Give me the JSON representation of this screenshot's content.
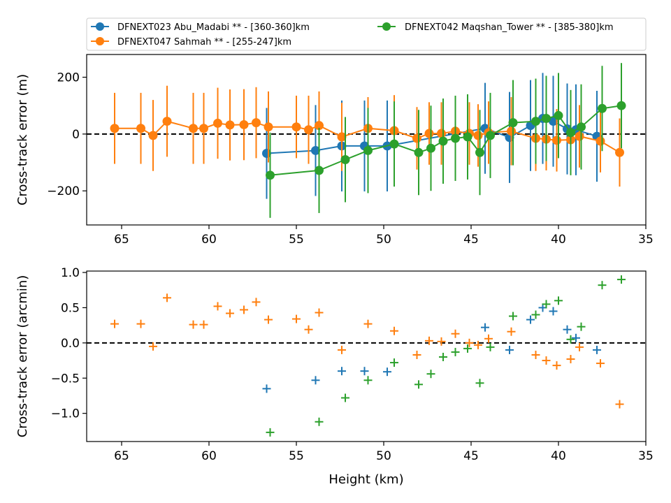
{
  "colors": {
    "s1": "#1f77b4",
    "s2": "#ff7f0e",
    "s3": "#2ca02c"
  },
  "chart_data": [
    {
      "type": "scatter",
      "panel": "top",
      "xlabel": "",
      "ylabel": "Cross-track error (m)",
      "xlim": [
        67,
        35
      ],
      "ylim": [
        -320,
        280
      ],
      "xticks": [
        65,
        60,
        55,
        50,
        45,
        40,
        35
      ],
      "yticks": [
        200,
        0,
        -200
      ],
      "hline": 0,
      "legend": {
        "placement": "top",
        "entries": [
          "DFNEXT023 Abu_Madabi **  - [360-360]km",
          "DFNEXT047 Sahmah **  - [255-247]km",
          "DFNEXT042 Maqshan_Tower **  - [385-380]km"
        ]
      },
      "series": [
        {
          "name": "DFNEXT023 Abu_Madabi **  - [360-360]km",
          "color": "#1f77b4",
          "x": [
            56.7,
            53.9,
            52.4,
            51.1,
            49.8,
            44.2,
            42.8,
            41.6,
            40.9,
            40.3,
            39.5,
            39.0,
            37.8
          ],
          "y": [
            -68,
            -58,
            -42,
            -42,
            -42,
            20,
            -12,
            30,
            55,
            45,
            18,
            15,
            -8
          ],
          "yerr": [
            160,
            160,
            160,
            160,
            160,
            160,
            160,
            160,
            160,
            160,
            160,
            160,
            160
          ]
        },
        {
          "name": "DFNEXT047 Sahmah **  - [255-247]km",
          "color": "#ff7f0e",
          "x": [
            65.4,
            63.9,
            63.2,
            62.4,
            60.9,
            60.3,
            59.5,
            58.8,
            58.0,
            57.3,
            56.6,
            55.0,
            54.3,
            53.7,
            52.4,
            50.9,
            49.4,
            48.1,
            47.4,
            46.7,
            45.9,
            45.1,
            44.6,
            44.0,
            42.7,
            41.3,
            40.7,
            40.1,
            39.3,
            38.8,
            37.6,
            36.5
          ],
          "y": [
            20,
            20,
            -5,
            45,
            20,
            20,
            38,
            32,
            33,
            40,
            25,
            25,
            15,
            30,
            -10,
            20,
            12,
            -15,
            2,
            2,
            10,
            2,
            -5,
            5,
            10,
            -15,
            -18,
            -22,
            -20,
            -8,
            -25,
            -65
          ],
          "yerr": [
            125,
            125,
            125,
            125,
            125,
            125,
            125,
            125,
            125,
            125,
            125,
            110,
            120,
            120,
            120,
            110,
            125,
            110,
            110,
            110,
            120,
            110,
            110,
            110,
            120,
            115,
            110,
            110,
            115,
            110,
            110,
            120
          ]
        },
        {
          "name": "DFNEXT042 Maqshan_Tower **  - [385-380]km",
          "color": "#2ca02c",
          "x": [
            56.5,
            53.7,
            52.2,
            50.9,
            49.4,
            48.0,
            47.3,
            46.6,
            45.9,
            45.2,
            44.5,
            43.9,
            42.6,
            41.3,
            40.7,
            40.0,
            39.3,
            38.7,
            37.5,
            36.4
          ],
          "y": [
            -145,
            -128,
            -90,
            -58,
            -35,
            -65,
            -50,
            -25,
            -15,
            -10,
            -65,
            -5,
            40,
            45,
            55,
            65,
            5,
            25,
            90,
            100
          ],
          "yerr": [
            150,
            150,
            150,
            150,
            150,
            150,
            150,
            150,
            150,
            150,
            150,
            150,
            150,
            150,
            150,
            150,
            150,
            150,
            150,
            150
          ]
        }
      ]
    },
    {
      "type": "scatter",
      "panel": "bottom",
      "xlabel": "Height (km)",
      "ylabel": "Cross-track error (arcmin)",
      "xlim": [
        67,
        35
      ],
      "ylim": [
        -1.4,
        1.02
      ],
      "xticks": [
        65,
        60,
        55,
        50,
        45,
        40,
        35
      ],
      "yticks": [
        1.0,
        0.5,
        0.0,
        -0.5,
        -1.0
      ],
      "hline": 0,
      "series": [
        {
          "color": "#1f77b4",
          "x": [
            56.7,
            53.9,
            52.4,
            51.1,
            49.8,
            44.2,
            42.8,
            41.6,
            40.9,
            40.3,
            39.5,
            39.0,
            37.8
          ],
          "y": [
            -0.65,
            -0.53,
            -0.4,
            -0.4,
            -0.41,
            0.22,
            -0.1,
            0.33,
            0.5,
            0.45,
            0.19,
            0.07,
            -0.1
          ]
        },
        {
          "color": "#ff7f0e",
          "x": [
            65.4,
            63.9,
            63.2,
            62.4,
            60.9,
            60.3,
            59.5,
            58.8,
            58.0,
            57.3,
            56.6,
            55.0,
            54.3,
            53.7,
            52.4,
            50.9,
            49.4,
            48.1,
            47.4,
            46.7,
            45.9,
            45.1,
            44.6,
            44.0,
            42.7,
            41.3,
            40.7,
            40.1,
            39.3,
            38.8,
            37.6,
            36.5
          ],
          "y": [
            0.27,
            0.27,
            -0.05,
            0.64,
            0.26,
            0.26,
            0.52,
            0.42,
            0.47,
            0.58,
            0.33,
            0.34,
            0.19,
            0.43,
            -0.1,
            0.27,
            0.17,
            -0.17,
            0.03,
            0.02,
            0.13,
            0.0,
            -0.03,
            0.06,
            0.16,
            -0.17,
            -0.25,
            -0.32,
            -0.23,
            -0.06,
            -0.29,
            -0.87
          ]
        },
        {
          "color": "#2ca02c",
          "x": [
            56.5,
            53.7,
            52.2,
            50.9,
            49.4,
            48.0,
            47.3,
            46.6,
            45.9,
            45.2,
            44.5,
            43.9,
            42.6,
            41.3,
            40.7,
            40.0,
            39.3,
            38.7,
            37.5,
            36.4
          ],
          "y": [
            -1.27,
            -1.12,
            -0.78,
            -0.53,
            -0.28,
            -0.59,
            -0.44,
            -0.2,
            -0.13,
            -0.08,
            -0.57,
            -0.06,
            0.38,
            0.4,
            0.55,
            0.6,
            0.05,
            0.23,
            0.82,
            0.9
          ]
        }
      ]
    }
  ]
}
